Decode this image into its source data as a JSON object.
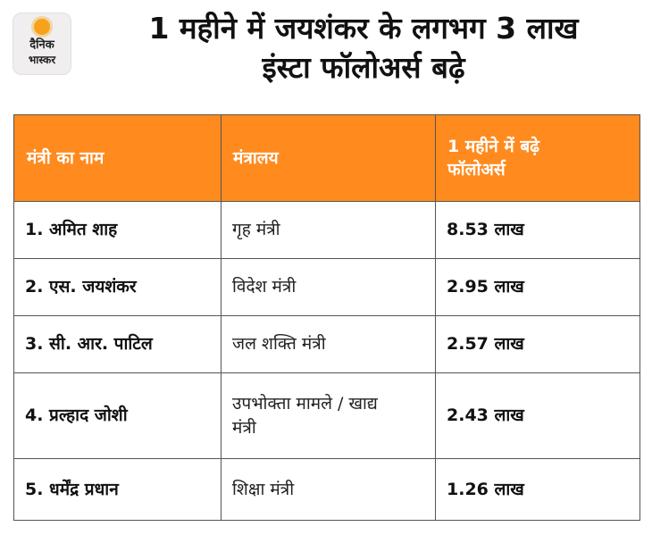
{
  "logo": {
    "line1": "दैनिक",
    "line2": "भास्कर"
  },
  "headline": {
    "line1": "1 महीने में जयशंकर के लगभग 3 लाख",
    "line2": "इंस्टा फॉलोअर्स बढ़े"
  },
  "table": {
    "headers": [
      "मंत्री का नाम",
      "मंत्रालय",
      "1 महीने में बढ़े फॉलोअर्स"
    ],
    "rows": [
      {
        "name": "1. अमित शाह",
        "ministry": "गृह मंत्री",
        "followers": "8.53 लाख"
      },
      {
        "name": "2. एस. जयशंकर",
        "ministry": "विदेश मंत्री",
        "followers": "2.95 लाख"
      },
      {
        "name": "3. सी. आर. पाटिल",
        "ministry": "जल शक्ति मंत्री",
        "followers": "2.57 लाख"
      },
      {
        "name": "4. प्रल्हाद जोशी",
        "ministry": "उपभोक्ता मामले / खाद्य मंत्री",
        "followers": "2.43 लाख"
      },
      {
        "name": "5. धर्मेंद्र प्रधान",
        "ministry": "शिक्षा मंत्री",
        "followers": "1.26 लाख"
      }
    ]
  },
  "colors": {
    "header_bg": "#ff8a1e",
    "sun": "#f7a21b"
  }
}
